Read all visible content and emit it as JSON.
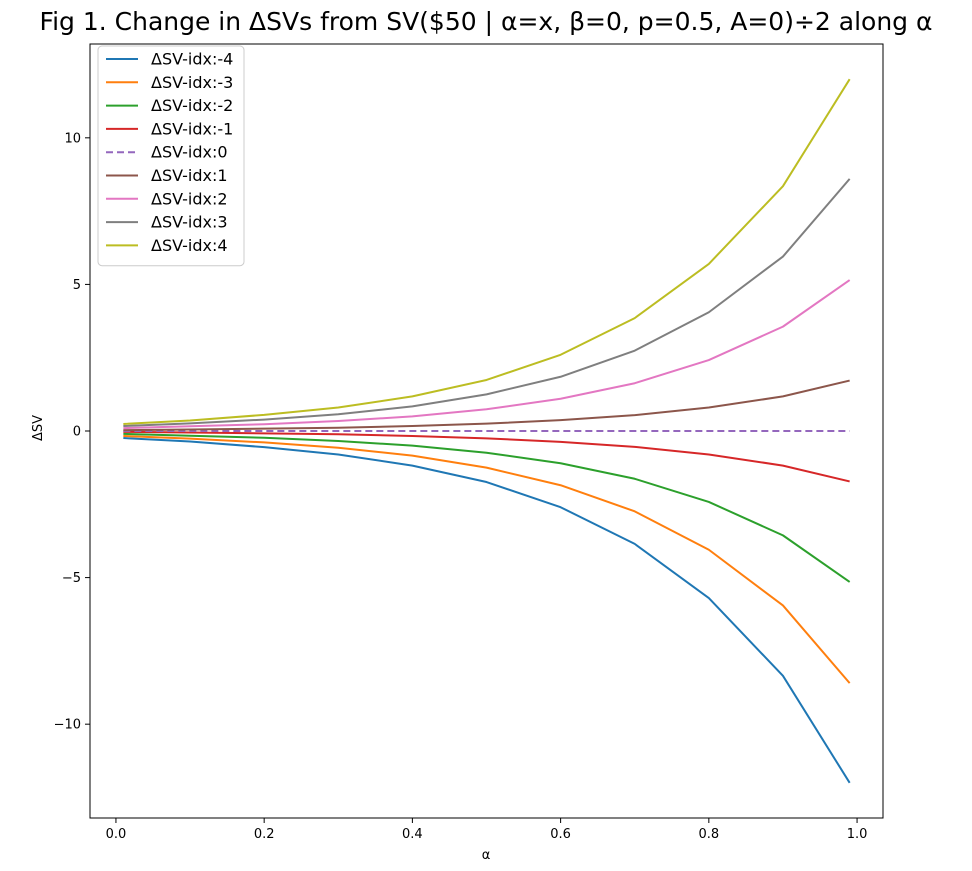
{
  "chart_data": {
    "type": "line",
    "title": "Fig 1. Change in ΔSVs from SV($50 | α=x, β=0, p=0.5, A=0)÷2 along α",
    "xlabel": "α",
    "ylabel": "ΔSV",
    "xlim": [
      -0.035,
      1.035
    ],
    "ylim": [
      -13.2,
      13.2
    ],
    "xticks": [
      0.0,
      0.2,
      0.4,
      0.6,
      0.8,
      1.0
    ],
    "xtick_labels": [
      "0.0",
      "0.2",
      "0.4",
      "0.6",
      "0.8",
      "1.0"
    ],
    "yticks": [
      -10,
      -5,
      0,
      5,
      10
    ],
    "ytick_labels": [
      "−10",
      "−5",
      "0",
      "5",
      "10"
    ],
    "grid": false,
    "legend_position": "top-left",
    "x": [
      0.01,
      0.1,
      0.2,
      0.3,
      0.4,
      0.5,
      0.6,
      0.7,
      0.8,
      0.9,
      0.99
    ],
    "series": [
      {
        "name": "ΔSV-idx:-4",
        "color": "#1f77b4",
        "dash": false,
        "values": [
          -0.24,
          -0.36,
          -0.55,
          -0.8,
          -1.18,
          -1.74,
          -2.6,
          -3.85,
          -5.7,
          -8.35,
          -12.0
        ]
      },
      {
        "name": "ΔSV-idx:-3",
        "color": "#ff7f0e",
        "dash": false,
        "values": [
          -0.17,
          -0.26,
          -0.39,
          -0.57,
          -0.84,
          -1.25,
          -1.85,
          -2.74,
          -4.05,
          -5.95,
          -8.6
        ]
      },
      {
        "name": "ΔSV-idx:-2",
        "color": "#2ca02c",
        "dash": false,
        "values": [
          -0.1,
          -0.16,
          -0.23,
          -0.34,
          -0.5,
          -0.74,
          -1.1,
          -1.63,
          -2.42,
          -3.56,
          -5.15
        ]
      },
      {
        "name": "ΔSV-idx:-1",
        "color": "#d62728",
        "dash": false,
        "values": [
          -0.03,
          -0.05,
          -0.08,
          -0.11,
          -0.17,
          -0.25,
          -0.37,
          -0.54,
          -0.8,
          -1.18,
          -1.72
        ]
      },
      {
        "name": "ΔSV-idx:0",
        "color": "#9467bd",
        "dash": true,
        "values": [
          0,
          0,
          0,
          0,
          0,
          0,
          0,
          0,
          0,
          0,
          0
        ]
      },
      {
        "name": "ΔSV-idx:1",
        "color": "#8c564b",
        "dash": false,
        "values": [
          0.03,
          0.05,
          0.08,
          0.11,
          0.17,
          0.25,
          0.37,
          0.54,
          0.8,
          1.18,
          1.72
        ]
      },
      {
        "name": "ΔSV-idx:2",
        "color": "#e377c2",
        "dash": false,
        "values": [
          0.1,
          0.16,
          0.23,
          0.34,
          0.5,
          0.74,
          1.1,
          1.63,
          2.42,
          3.56,
          5.15
        ]
      },
      {
        "name": "ΔSV-idx:3",
        "color": "#7f7f7f",
        "dash": false,
        "values": [
          0.17,
          0.26,
          0.39,
          0.57,
          0.84,
          1.25,
          1.85,
          2.74,
          4.05,
          5.95,
          8.6
        ]
      },
      {
        "name": "ΔSV-idx:4",
        "color": "#bcbd22",
        "dash": false,
        "values": [
          0.24,
          0.36,
          0.55,
          0.8,
          1.18,
          1.74,
          2.6,
          3.85,
          5.7,
          8.35,
          12.0
        ]
      }
    ]
  }
}
